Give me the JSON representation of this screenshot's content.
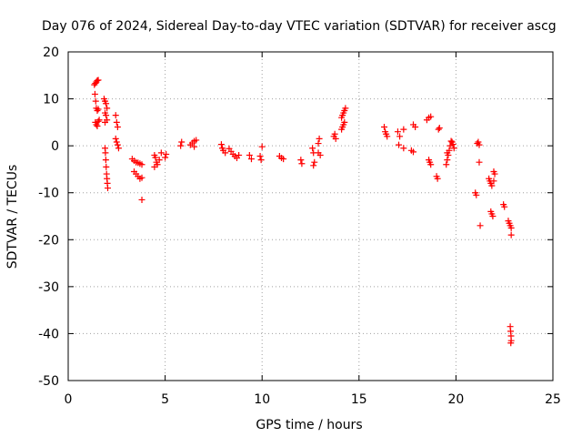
{
  "chart_data": {
    "type": "scatter",
    "title": "Day 076 of 2024, Sidereal Day-to-day VTEC variation (SDTVAR) for receiver ascg",
    "xlabel": "GPS time / hours",
    "ylabel": "SDTVAR / TECUs",
    "xlim": [
      0,
      25
    ],
    "ylim": [
      -50,
      20
    ],
    "xticks": [
      0,
      5,
      10,
      15,
      20,
      25
    ],
    "yticks": [
      -50,
      -40,
      -30,
      -20,
      -10,
      0,
      10,
      20
    ],
    "xtick_labels": [
      "0",
      "5",
      "10",
      "15",
      "20",
      "25"
    ],
    "ytick_labels": [
      "-50",
      "-40",
      "-30",
      "-20",
      "-10",
      "0",
      "10",
      "20"
    ],
    "grid": true,
    "marker": "+",
    "color": "#ff0000",
    "series": [
      {
        "name": "ascg",
        "points": [
          [
            1.35,
            13.0
          ],
          [
            1.4,
            13.3
          ],
          [
            1.45,
            13.6
          ],
          [
            1.5,
            13.9
          ],
          [
            1.55,
            14.0
          ],
          [
            1.38,
            11.0
          ],
          [
            1.42,
            9.5
          ],
          [
            1.45,
            8.0
          ],
          [
            1.5,
            7.5
          ],
          [
            1.55,
            7.8
          ],
          [
            1.4,
            5.0
          ],
          [
            1.45,
            4.5
          ],
          [
            1.5,
            4.2
          ],
          [
            1.55,
            5.2
          ],
          [
            1.6,
            5.5
          ],
          [
            1.85,
            10.0
          ],
          [
            1.9,
            9.5
          ],
          [
            1.95,
            9.0
          ],
          [
            2.0,
            8.0
          ],
          [
            1.9,
            7.0
          ],
          [
            1.95,
            6.5
          ],
          [
            2.0,
            5.5
          ],
          [
            1.9,
            5.0
          ],
          [
            1.9,
            -0.5
          ],
          [
            1.92,
            -1.5
          ],
          [
            1.94,
            -3.0
          ],
          [
            1.96,
            -4.5
          ],
          [
            1.98,
            -6.0
          ],
          [
            2.0,
            -7.0
          ],
          [
            2.02,
            -8.0
          ],
          [
            2.04,
            -9.0
          ],
          [
            2.45,
            6.5
          ],
          [
            2.5,
            5.0
          ],
          [
            2.55,
            4.0
          ],
          [
            2.45,
            1.5
          ],
          [
            2.5,
            0.8
          ],
          [
            2.55,
            0.2
          ],
          [
            2.6,
            -0.5
          ],
          [
            3.3,
            -2.8
          ],
          [
            3.4,
            -3.2
          ],
          [
            3.5,
            -3.5
          ],
          [
            3.6,
            -3.6
          ],
          [
            3.7,
            -3.8
          ],
          [
            3.8,
            -4.0
          ],
          [
            3.4,
            -5.5
          ],
          [
            3.5,
            -6.0
          ],
          [
            3.6,
            -6.5
          ],
          [
            3.7,
            -7.0
          ],
          [
            3.8,
            -6.8
          ],
          [
            3.8,
            -11.5
          ],
          [
            4.45,
            -2.0
          ],
          [
            4.5,
            -2.5
          ],
          [
            4.55,
            -3.5
          ],
          [
            4.6,
            -4.0
          ],
          [
            4.45,
            -4.5
          ],
          [
            4.7,
            -3.0
          ],
          [
            4.8,
            -1.5
          ],
          [
            5.0,
            -2.5
          ],
          [
            5.05,
            -1.8
          ],
          [
            5.8,
            0.0
          ],
          [
            5.85,
            0.8
          ],
          [
            6.3,
            0.2
          ],
          [
            6.4,
            0.6
          ],
          [
            6.5,
            1.0
          ],
          [
            6.6,
            1.2
          ],
          [
            6.5,
            -0.2
          ],
          [
            7.9,
            0.3
          ],
          [
            7.95,
            -0.5
          ],
          [
            8.0,
            -1.0
          ],
          [
            8.1,
            -1.5
          ],
          [
            8.3,
            -0.6
          ],
          [
            8.4,
            -1.2
          ],
          [
            8.5,
            -1.8
          ],
          [
            8.6,
            -2.2
          ],
          [
            8.7,
            -2.6
          ],
          [
            8.8,
            -2.0
          ],
          [
            9.35,
            -2.0
          ],
          [
            9.45,
            -2.8
          ],
          [
            9.9,
            -2.2
          ],
          [
            9.95,
            -3.0
          ],
          [
            10.0,
            -0.2
          ],
          [
            10.9,
            -2.2
          ],
          [
            11.0,
            -2.6
          ],
          [
            11.1,
            -2.8
          ],
          [
            12.0,
            -3.0
          ],
          [
            12.05,
            -3.8
          ],
          [
            12.6,
            -0.5
          ],
          [
            12.65,
            -1.5
          ],
          [
            12.7,
            -3.5
          ],
          [
            12.65,
            -4.2
          ],
          [
            12.9,
            0.5
          ],
          [
            12.95,
            1.5
          ],
          [
            12.9,
            -1.5
          ],
          [
            13.0,
            -2.0
          ],
          [
            13.7,
            2.0
          ],
          [
            13.75,
            2.5
          ],
          [
            13.8,
            1.5
          ],
          [
            14.1,
            3.5
          ],
          [
            14.15,
            4.0
          ],
          [
            14.2,
            4.5
          ],
          [
            14.25,
            5.0
          ],
          [
            14.1,
            6.0
          ],
          [
            14.15,
            6.5
          ],
          [
            14.2,
            7.0
          ],
          [
            14.25,
            7.5
          ],
          [
            14.3,
            8.0
          ],
          [
            16.3,
            4.0
          ],
          [
            16.35,
            3.0
          ],
          [
            16.4,
            2.5
          ],
          [
            16.45,
            2.0
          ],
          [
            17.0,
            3.0
          ],
          [
            17.1,
            2.0
          ],
          [
            17.3,
            3.5
          ],
          [
            17.05,
            0.2
          ],
          [
            17.3,
            -0.5
          ],
          [
            17.7,
            -1.0
          ],
          [
            17.8,
            -1.3
          ],
          [
            17.8,
            4.5
          ],
          [
            17.9,
            4.0
          ],
          [
            18.5,
            5.5
          ],
          [
            18.6,
            6.0
          ],
          [
            18.7,
            6.2
          ],
          [
            18.6,
            -3.0
          ],
          [
            18.65,
            -3.5
          ],
          [
            18.7,
            -4.0
          ],
          [
            19.0,
            -6.5
          ],
          [
            19.05,
            -7.0
          ],
          [
            19.1,
            3.5
          ],
          [
            19.15,
            3.8
          ],
          [
            19.5,
            -4.0
          ],
          [
            19.55,
            -3.0
          ],
          [
            19.6,
            -2.0
          ],
          [
            19.65,
            -1.0
          ],
          [
            19.7,
            0.0
          ],
          [
            19.75,
            1.0
          ],
          [
            19.8,
            0.8
          ],
          [
            19.85,
            0.3
          ],
          [
            19.9,
            -0.5
          ],
          [
            19.55,
            -1.5
          ],
          [
            21.0,
            -10.0
          ],
          [
            21.05,
            -10.5
          ],
          [
            21.1,
            0.5
          ],
          [
            21.15,
            0.8
          ],
          [
            21.2,
            0.2
          ],
          [
            21.2,
            -3.5
          ],
          [
            21.25,
            -17.0
          ],
          [
            21.7,
            -7.0
          ],
          [
            21.75,
            -7.5
          ],
          [
            21.8,
            -8.0
          ],
          [
            21.85,
            -8.5
          ],
          [
            21.95,
            -5.5
          ],
          [
            22.0,
            -6.0
          ],
          [
            21.95,
            -7.5
          ],
          [
            21.8,
            -14.0
          ],
          [
            21.85,
            -14.5
          ],
          [
            21.9,
            -15.0
          ],
          [
            22.45,
            -12.5
          ],
          [
            22.5,
            -13.0
          ],
          [
            22.7,
            -16.0
          ],
          [
            22.75,
            -16.5
          ],
          [
            22.8,
            -17.0
          ],
          [
            22.85,
            -17.5
          ],
          [
            22.85,
            -19.0
          ],
          [
            22.8,
            -38.5
          ],
          [
            22.82,
            -39.5
          ],
          [
            22.84,
            -40.5
          ],
          [
            22.85,
            -41.5
          ],
          [
            22.83,
            -42.0
          ]
        ]
      }
    ]
  }
}
